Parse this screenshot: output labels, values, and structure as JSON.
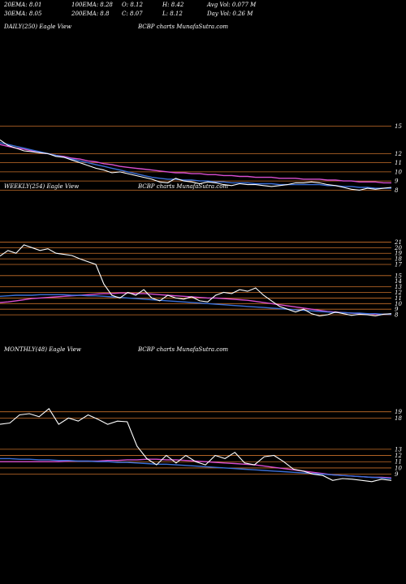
{
  "header": {
    "row1": [
      "20EMA: 8.01",
      "100EMA: 8.28",
      "O: 8.12",
      "H: 8.42",
      "Avg Vol: 0.077 M"
    ],
    "row2": [
      "30EMA: 8.05",
      "200EMA: 8.8",
      "C: 8.07",
      "L: 8.12",
      "Day Vol: 0.26 M"
    ]
  },
  "panels": [
    {
      "label": "DAILY(250) Eagle  View",
      "source": "BCBP charts MunafaSutra.com"
    },
    {
      "label": "WEEKLY(254) Eagle  View",
      "source": "BCBP charts MunafaSutra.com"
    },
    {
      "label": "MONTHLY(48) Eagle  View",
      "source": "BCBP charts MunafaSutra.com"
    }
  ],
  "colors": {
    "price": "#ffffff",
    "ema_fast": "#3a6fd8",
    "ema_slow": "#d94fd0",
    "level": "#c8702a",
    "ema_mid": "#b0b0b0"
  },
  "chart_data": [
    {
      "type": "line",
      "title": "DAILY(250) Eagle  View",
      "ylim": [
        7.5,
        15.5
      ],
      "ticks": [
        15,
        12,
        11,
        10,
        9,
        8
      ],
      "levels": [
        15,
        12,
        11,
        10,
        9,
        8
      ],
      "series": [
        {
          "values": [
            13.5,
            12.9,
            12.6,
            12.3,
            12.2,
            12.1,
            12.0,
            11.7,
            11.6,
            11.3,
            11.0,
            10.7,
            10.4,
            10.2,
            9.9,
            10.0,
            9.8,
            9.6,
            9.4,
            9.2,
            8.9,
            8.8,
            9.3,
            9.0,
            8.9,
            8.7,
            8.9,
            8.8,
            8.6,
            8.5,
            8.7,
            8.6,
            8.6,
            8.5,
            8.4,
            8.5,
            8.6,
            8.8,
            8.8,
            8.9,
            8.8,
            8.6,
            8.5,
            8.3,
            8.1,
            8.0,
            8.2,
            8.1,
            8.2,
            8.3
          ]
        },
        {
          "values": [
            13.2,
            13.0,
            12.8,
            12.6,
            12.4,
            12.2,
            12.0,
            11.8,
            11.6,
            11.4,
            11.2,
            11.0,
            10.8,
            10.6,
            10.4,
            10.2,
            10.0,
            9.8,
            9.6,
            9.4,
            9.3,
            9.2,
            9.2,
            9.1,
            9.1,
            9.0,
            9.0,
            8.9,
            8.9,
            8.8,
            8.8,
            8.8,
            8.7,
            8.7,
            8.7,
            8.6,
            8.6,
            8.6,
            8.6,
            8.6,
            8.6,
            8.5,
            8.5,
            8.4,
            8.4,
            8.3,
            8.3,
            8.2,
            8.2,
            8.2
          ]
        },
        {
          "values": [
            13.0,
            12.8,
            12.6,
            12.5,
            12.3,
            12.1,
            12.0,
            11.8,
            11.7,
            11.5,
            11.4,
            11.2,
            11.1,
            10.9,
            10.8,
            10.6,
            10.5,
            10.4,
            10.3,
            10.2,
            10.1,
            10.0,
            9.9,
            9.9,
            9.8,
            9.8,
            9.7,
            9.7,
            9.6,
            9.6,
            9.5,
            9.5,
            9.4,
            9.4,
            9.4,
            9.3,
            9.3,
            9.3,
            9.2,
            9.2,
            9.2,
            9.1,
            9.1,
            9.0,
            9.0,
            8.9,
            8.9,
            8.9,
            8.8,
            8.8
          ]
        }
      ]
    },
    {
      "type": "line",
      "title": "WEEKLY(254) Eagle  View",
      "ylim": [
        7,
        21.5
      ],
      "ticks": [
        21,
        20,
        19,
        18,
        17,
        15,
        14,
        13,
        12,
        11,
        10,
        9,
        8
      ],
      "levels": [
        21,
        20,
        19,
        18,
        17,
        15,
        13,
        12,
        11,
        10,
        9,
        8
      ],
      "series": [
        {
          "values": [
            18.5,
            19.5,
            19.0,
            20.5,
            20.0,
            19.5,
            19.8,
            19.0,
            18.8,
            18.6,
            18.0,
            17.5,
            17.0,
            13.5,
            11.5,
            11.0,
            12.0,
            11.5,
            12.5,
            11.0,
            10.5,
            11.5,
            11.0,
            10.8,
            11.2,
            10.5,
            10.3,
            11.5,
            12.0,
            11.8,
            12.5,
            12.2,
            12.8,
            11.5,
            10.5,
            9.5,
            9.0,
            8.5,
            9.0,
            8.2,
            7.8,
            8.0,
            8.5,
            8.2,
            7.9,
            8.1,
            8.0,
            7.8,
            8.1,
            8.2
          ]
        },
        {
          "values": [
            11.3,
            11.4,
            11.5,
            11.5,
            11.5,
            11.6,
            11.6,
            11.6,
            11.6,
            11.5,
            11.5,
            11.4,
            11.4,
            11.3,
            11.2,
            11.1,
            11.0,
            10.9,
            10.8,
            10.7,
            10.6,
            10.5,
            10.4,
            10.3,
            10.2,
            10.1,
            10.0,
            9.9,
            9.8,
            9.7,
            9.6,
            9.5,
            9.4,
            9.3,
            9.2,
            9.1,
            9.0,
            8.9,
            8.8,
            8.7,
            8.6,
            8.5,
            8.4,
            8.4,
            8.3,
            8.3,
            8.2,
            8.2,
            8.1,
            8.1
          ]
        },
        {
          "values": [
            10.2,
            10.3,
            10.5,
            10.7,
            10.9,
            11.0,
            11.1,
            11.2,
            11.3,
            11.4,
            11.5,
            11.6,
            11.7,
            11.8,
            11.8,
            11.9,
            11.9,
            11.8,
            11.8,
            11.7,
            11.6,
            11.5,
            11.4,
            11.3,
            11.2,
            11.1,
            11.0,
            11.0,
            10.9,
            10.8,
            10.7,
            10.6,
            10.4,
            10.2,
            10.0,
            9.8,
            9.6,
            9.4,
            9.2,
            9.0,
            8.8,
            8.6,
            8.5,
            8.4,
            8.3,
            8.2,
            8.2,
            8.1,
            8.1,
            8.1
          ]
        }
      ]
    },
    {
      "type": "line",
      "title": "MONTHLY(48) Eagle  View",
      "ylim": [
        7,
        20
      ],
      "ticks": [
        19,
        18,
        13,
        12,
        11,
        10,
        9
      ],
      "levels": [
        19,
        18,
        13,
        12,
        11,
        10,
        9
      ],
      "series": [
        {
          "values": [
            17.0,
            17.2,
            18.5,
            18.7,
            18.2,
            19.5,
            17.0,
            18.0,
            17.5,
            18.5,
            17.8,
            17.0,
            17.5,
            17.4,
            13.5,
            11.5,
            10.5,
            12.0,
            10.8,
            12.0,
            11.0,
            10.5,
            12.0,
            11.5,
            12.5,
            10.8,
            10.5,
            11.8,
            12.0,
            11.0,
            9.8,
            9.5,
            9.0,
            8.8,
            8.0,
            8.3,
            8.2,
            8.0,
            7.8,
            8.2,
            8.0
          ]
        },
        {
          "values": [
            11.5,
            11.5,
            11.4,
            11.4,
            11.3,
            11.3,
            11.2,
            11.2,
            11.1,
            11.1,
            11.0,
            11.0,
            10.9,
            10.9,
            10.8,
            10.7,
            10.6,
            10.6,
            10.5,
            10.4,
            10.3,
            10.2,
            10.1,
            10.0,
            9.9,
            9.8,
            9.7,
            9.6,
            9.5,
            9.4,
            9.3,
            9.2,
            9.1,
            9.0,
            8.9,
            8.8,
            8.7,
            8.6,
            8.5,
            8.4,
            8.3
          ]
        },
        {
          "values": [
            11.0,
            11.0,
            11.0,
            11.0,
            11.0,
            11.0,
            11.0,
            11.1,
            11.1,
            11.1,
            11.1,
            11.2,
            11.2,
            11.3,
            11.3,
            11.4,
            11.4,
            11.3,
            11.3,
            11.2,
            11.1,
            11.0,
            10.9,
            10.8,
            10.7,
            10.6,
            10.5,
            10.3,
            10.1,
            9.9,
            9.7,
            9.5,
            9.3,
            9.1,
            8.9,
            8.8,
            8.7,
            8.6,
            8.5,
            8.5,
            8.4
          ]
        }
      ]
    }
  ]
}
